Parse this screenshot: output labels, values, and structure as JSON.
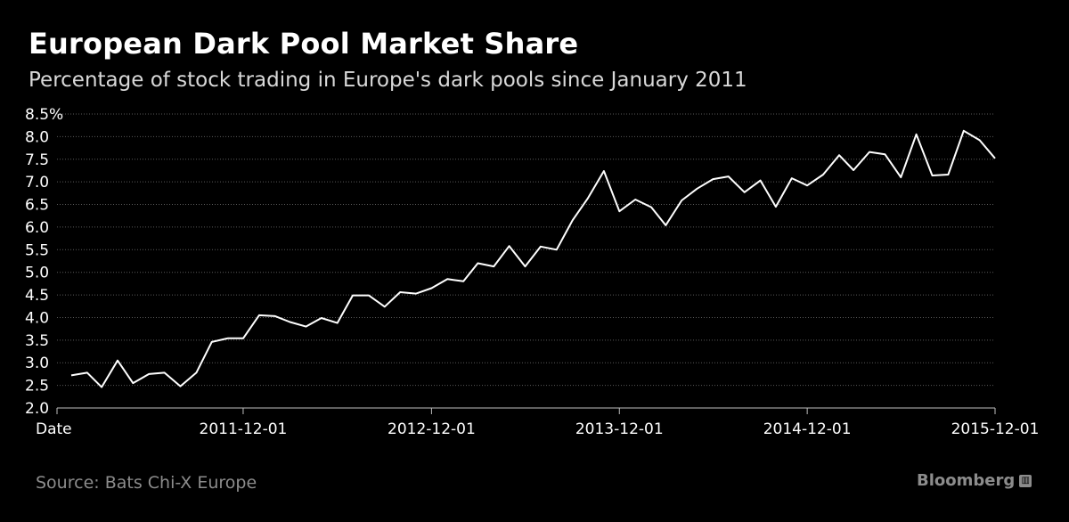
{
  "header": {
    "title": "European Dark Pool Market Share",
    "subtitle": "Percentage of stock trading in Europe's dark pools since January 2011"
  },
  "footer": {
    "source": "Source: Bats Chi-X Europe",
    "brand": "Bloomberg",
    "brand_icon": "bloomberg-logo-icon"
  },
  "colors": {
    "background": "#000000",
    "line": "#ffffff",
    "grid": "#5a5a5a",
    "muted": "#8c8c8c"
  },
  "chart_data": {
    "type": "line",
    "title": "European Dark Pool Market Share",
    "subtitle": "Percentage of stock trading in Europe's dark pools since January 2011",
    "xlabel": "Date",
    "ylabel": "",
    "ylim": [
      2.0,
      8.5
    ],
    "yticks": [
      "2.0",
      "2.5",
      "3.0",
      "3.5",
      "4.0",
      "4.5",
      "5.0",
      "5.5",
      "6.0",
      "6.5",
      "7.0",
      "7.5",
      "8.0",
      "8.5%"
    ],
    "xticks": [
      "2011-12-01",
      "2012-12-01",
      "2013-12-01",
      "2014-12-01",
      "2015-12-01"
    ],
    "xlim": [
      "2011-01-01",
      "2015-12-01"
    ],
    "grid": true,
    "series": [
      {
        "x": [
          "2011-01-01",
          "2011-02-01",
          "2011-03-01",
          "2011-04-01",
          "2011-05-01",
          "2011-06-01",
          "2011-07-01",
          "2011-08-01",
          "2011-09-01",
          "2011-10-01",
          "2011-11-01",
          "2011-12-01",
          "2012-01-01",
          "2012-02-01",
          "2012-03-01",
          "2012-04-01",
          "2012-05-01",
          "2012-06-01",
          "2012-07-01",
          "2012-08-01",
          "2012-09-01",
          "2012-10-01",
          "2012-11-01",
          "2012-12-01",
          "2013-01-01",
          "2013-02-01",
          "2013-03-01",
          "2013-04-01",
          "2013-05-01",
          "2013-06-01",
          "2013-07-01",
          "2013-08-01",
          "2013-09-01",
          "2013-10-01",
          "2013-11-01",
          "2013-12-01",
          "2014-01-01",
          "2014-02-01",
          "2014-03-01",
          "2014-04-01",
          "2014-05-01",
          "2014-06-01",
          "2014-07-01",
          "2014-08-01",
          "2014-09-01",
          "2014-10-01",
          "2014-11-01",
          "2014-12-01",
          "2015-01-01",
          "2015-02-01",
          "2015-03-01",
          "2015-04-01",
          "2015-05-01",
          "2015-06-01",
          "2015-07-01",
          "2015-08-01",
          "2015-09-01",
          "2015-10-01",
          "2015-11-01",
          "2015-12-01"
        ],
        "values": [
          2.72,
          2.78,
          2.46,
          3.05,
          2.55,
          2.75,
          2.78,
          2.48,
          2.78,
          3.46,
          3.54,
          3.54,
          4.05,
          4.03,
          3.9,
          3.8,
          3.99,
          3.88,
          4.49,
          4.49,
          4.24,
          4.56,
          4.53,
          4.65,
          4.85,
          4.8,
          5.2,
          5.13,
          5.58,
          5.13,
          5.57,
          5.5,
          6.15,
          6.64,
          7.24,
          6.35,
          6.61,
          6.44,
          6.04,
          6.59,
          6.85,
          7.06,
          7.12,
          6.77,
          7.03,
          6.45,
          7.08,
          6.92,
          7.16,
          7.59,
          7.26,
          7.66,
          7.61,
          7.1,
          8.05,
          7.14,
          7.16,
          8.13,
          7.92,
          7.52
        ]
      }
    ]
  }
}
